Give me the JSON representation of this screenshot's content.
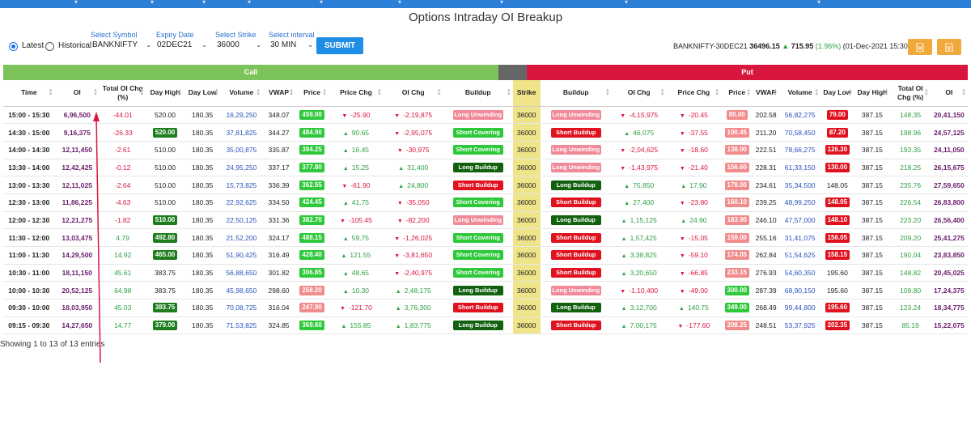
{
  "page": {
    "title": "Options Intraday OI Breakup"
  },
  "controls": {
    "latest_label": "Latest",
    "historical_label": "Historical",
    "symbol_label": "Select Symbol",
    "symbol_value": "BANKNIFTY",
    "expiry_label": "Expiry Date",
    "expiry_value": "02DEC21",
    "strike_label": "Select Strike",
    "strike_value": "36000",
    "interval_label": "Select interval",
    "interval_value": "30 MIN",
    "submit_label": "SUBMIT"
  },
  "quote": {
    "contract": "BANKNIFTY-30DEC21",
    "price": "36496.15",
    "change": "715.95",
    "change_pct": "(1.96%)",
    "timestamp": "(01-Dec-2021 15:30 )"
  },
  "colors": {
    "accent": "#1f8ee6",
    "call_band": "#7dc35b",
    "put_band": "#d9163e",
    "strike_bg": "#efe48a",
    "export_btn": "#f2a93b"
  },
  "icons": [
    "excel-export-icon",
    "pdf-export-icon",
    "sort-icon",
    "arrow-up-icon",
    "arrow-down-icon"
  ],
  "bands": {
    "call": "Call",
    "put": "Put"
  },
  "headers": [
    "Time",
    "OI",
    "Total OI Chg (%)",
    "Day High",
    "Day Low",
    "Volume",
    "VWAP",
    "Price",
    "Price Chg",
    "OI Chg",
    "Buildup",
    "Strike",
    "Buildup",
    "OI Chg",
    "Price Chg",
    "Price",
    "VWAP",
    "Volume",
    "Day Low",
    "Day High",
    "Total OI Chg (%)",
    "OI"
  ],
  "rows": [
    {
      "time": "15:00 - 15:30",
      "c_oi": "6,96,500",
      "c_toi": "-44.01",
      "c_high": "520.00",
      "c_high_tag": "",
      "c_low": "180.35",
      "c_vol": "16,29,250",
      "c_vwap": "348.07",
      "c_price": "459.00",
      "c_price_tag": "pgreen",
      "c_pchg": "-25.90",
      "c_oichg": "-2,19,875",
      "c_build": "Long Unwinding",
      "c_bcls": "lu",
      "strike": "36000",
      "p_build": "Long Unwinding",
      "p_bcls": "lu",
      "p_oichg": "-4,15,975",
      "p_pchg": "-20.45",
      "p_price": "80.00",
      "p_price_tag": "pred",
      "p_vwap": "202.58",
      "p_vol": "56,82,275",
      "p_low": "79.00",
      "p_low_tag": "red",
      "p_high": "387.15",
      "p_toi": "148.35",
      "p_oi": "20,41,150"
    },
    {
      "time": "14:30 - 15:00",
      "c_oi": "9,16,375",
      "c_toi": "-26.33",
      "c_high": "520.00",
      "c_high_tag": "green",
      "c_low": "180.35",
      "c_vol": "37,81,825",
      "c_vwap": "344.27",
      "c_price": "484.90",
      "c_price_tag": "pgreen",
      "c_pchg": "90.65",
      "c_oichg": "-2,95,075",
      "c_build": "Short Covering",
      "c_bcls": "sc",
      "strike": "36000",
      "p_build": "Short Buildup",
      "p_bcls": "sb",
      "p_oichg": "46,075",
      "p_pchg": "-37.55",
      "p_price": "100.45",
      "p_price_tag": "pred",
      "p_vwap": "211.20",
      "p_vol": "70,58,450",
      "p_low": "87.20",
      "p_low_tag": "red",
      "p_high": "387.15",
      "p_toi": "198.96",
      "p_oi": "24,57,125"
    },
    {
      "time": "14:00 - 14:30",
      "c_oi": "12,11,450",
      "c_toi": "-2.61",
      "c_high": "510.00",
      "c_high_tag": "",
      "c_low": "180.35",
      "c_vol": "35,00,875",
      "c_vwap": "335.87",
      "c_price": "394.25",
      "c_price_tag": "pgreen",
      "c_pchg": "16.45",
      "c_oichg": "-30,975",
      "c_build": "Short Covering",
      "c_bcls": "sc",
      "strike": "36000",
      "p_build": "Long Unwinding",
      "p_bcls": "lu",
      "p_oichg": "-2,04,625",
      "p_pchg": "-18.60",
      "p_price": "138.00",
      "p_price_tag": "pred",
      "p_vwap": "222.51",
      "p_vol": "78,66,275",
      "p_low": "126.30",
      "p_low_tag": "red",
      "p_high": "387.15",
      "p_toi": "193.35",
      "p_oi": "24,11,050"
    },
    {
      "time": "13:30 - 14:00",
      "c_oi": "12,42,425",
      "c_toi": "-0.12",
      "c_high": "510.00",
      "c_high_tag": "",
      "c_low": "180.35",
      "c_vol": "24,95,250",
      "c_vwap": "337.17",
      "c_price": "377.80",
      "c_price_tag": "pgreen",
      "c_pchg": "15.25",
      "c_oichg": "31,400",
      "c_build": "Long Buildup",
      "c_bcls": "lb",
      "strike": "36000",
      "p_build": "Long Unwinding",
      "p_bcls": "lu",
      "p_oichg": "-1,43,975",
      "p_pchg": "-21.40",
      "p_price": "156.60",
      "p_price_tag": "pred",
      "p_vwap": "228.31",
      "p_vol": "61,33,150",
      "p_low": "130.00",
      "p_low_tag": "red",
      "p_high": "387.15",
      "p_toi": "218.25",
      "p_oi": "26,15,675"
    },
    {
      "time": "13:00 - 13:30",
      "c_oi": "12,11,025",
      "c_toi": "-2.64",
      "c_high": "510.00",
      "c_high_tag": "",
      "c_low": "180.35",
      "c_vol": "15,73,825",
      "c_vwap": "336.39",
      "c_price": "362.55",
      "c_price_tag": "pgreen",
      "c_pchg": "-61.90",
      "c_oichg": "24,800",
      "c_build": "Short Buildup",
      "c_bcls": "sb",
      "strike": "36000",
      "p_build": "Long Buildup",
      "p_bcls": "lb",
      "p_oichg": "75,850",
      "p_pchg": "17.90",
      "p_price": "178.00",
      "p_price_tag": "pred",
      "p_vwap": "234.61",
      "p_vol": "35,34,500",
      "p_low": "148.05",
      "p_low_tag": "",
      "p_high": "387.15",
      "p_toi": "235.76",
      "p_oi": "27,59,650"
    },
    {
      "time": "12:30 - 13:00",
      "c_oi": "11,86,225",
      "c_toi": "-4.63",
      "c_high": "510.00",
      "c_high_tag": "",
      "c_low": "180.35",
      "c_vol": "22,92,625",
      "c_vwap": "334.50",
      "c_price": "424.45",
      "c_price_tag": "pgreen",
      "c_pchg": "41.75",
      "c_oichg": "-35,050",
      "c_build": "Short Covering",
      "c_bcls": "sc",
      "strike": "36000",
      "p_build": "Short Buildup",
      "p_bcls": "sb",
      "p_oichg": "27,400",
      "p_pchg": "-23.80",
      "p_price": "160.10",
      "p_price_tag": "pred",
      "p_vwap": "239.25",
      "p_vol": "48,99,250",
      "p_low": "148.05",
      "p_low_tag": "red",
      "p_high": "387.15",
      "p_toi": "226.54",
      "p_oi": "26,83,800"
    },
    {
      "time": "12:00 - 12:30",
      "c_oi": "12,21,275",
      "c_toi": "-1.82",
      "c_high": "510.00",
      "c_high_tag": "green",
      "c_low": "180.35",
      "c_vol": "22,50,125",
      "c_vwap": "331.36",
      "c_price": "382.70",
      "c_price_tag": "pgreen",
      "c_pchg": "-105.45",
      "c_oichg": "-82,200",
      "c_build": "Long Unwinding",
      "c_bcls": "lu",
      "strike": "36000",
      "p_build": "Long Buildup",
      "p_bcls": "lb",
      "p_oichg": "1,15,125",
      "p_pchg": "24.90",
      "p_price": "183.90",
      "p_price_tag": "pred",
      "p_vwap": "246.10",
      "p_vol": "47,57,000",
      "p_low": "148.10",
      "p_low_tag": "red",
      "p_high": "387.15",
      "p_toi": "223.20",
      "p_oi": "26,56,400"
    },
    {
      "time": "11:30 - 12:00",
      "c_oi": "13,03,475",
      "c_toi": "4.79",
      "c_high": "492.80",
      "c_high_tag": "green",
      "c_low": "180.35",
      "c_vol": "21,52,200",
      "c_vwap": "324.17",
      "c_price": "488.15",
      "c_price_tag": "pgreen",
      "c_pchg": "59.75",
      "c_oichg": "-1,26,025",
      "c_build": "Short Covering",
      "c_bcls": "sc",
      "strike": "36000",
      "p_build": "Short Buildup",
      "p_bcls": "sb",
      "p_oichg": "1,57,425",
      "p_pchg": "-15.05",
      "p_price": "159.00",
      "p_price_tag": "pred",
      "p_vwap": "255.16",
      "p_vol": "31,41,075",
      "p_low": "156.05",
      "p_low_tag": "red",
      "p_high": "387.15",
      "p_toi": "209.20",
      "p_oi": "25,41,275"
    },
    {
      "time": "11:00 - 11:30",
      "c_oi": "14,29,500",
      "c_toi": "14.92",
      "c_high": "465.00",
      "c_high_tag": "green",
      "c_low": "180.35",
      "c_vol": "51,90,425",
      "c_vwap": "316.49",
      "c_price": "428.40",
      "c_price_tag": "pgreen",
      "c_pchg": "121.55",
      "c_oichg": "-3,81,650",
      "c_build": "Short Covering",
      "c_bcls": "sc",
      "strike": "36000",
      "p_build": "Short Buildup",
      "p_bcls": "sb",
      "p_oichg": "3,38,825",
      "p_pchg": "-59.10",
      "p_price": "174.05",
      "p_price_tag": "pred",
      "p_vwap": "262.84",
      "p_vol": "51,54,625",
      "p_low": "158.15",
      "p_low_tag": "red",
      "p_high": "387.15",
      "p_toi": "190.04",
      "p_oi": "23,83,850"
    },
    {
      "time": "10:30 - 11:00",
      "c_oi": "18,11,150",
      "c_toi": "45.61",
      "c_high": "383.75",
      "c_high_tag": "",
      "c_low": "180.35",
      "c_vol": "56,88,650",
      "c_vwap": "301.82",
      "c_price": "306.85",
      "c_price_tag": "pgreen",
      "c_pchg": "48.65",
      "c_oichg": "-2,40,975",
      "c_build": "Short Covering",
      "c_bcls": "sc",
      "strike": "36000",
      "p_build": "Short Buildup",
      "p_bcls": "sb",
      "p_oichg": "3,20,650",
      "p_pchg": "-66.85",
      "p_price": "233.15",
      "p_price_tag": "pred",
      "p_vwap": "276.93",
      "p_vol": "54,60,350",
      "p_low": "195.60",
      "p_low_tag": "",
      "p_high": "387.15",
      "p_toi": "148.82",
      "p_oi": "20,45,025"
    },
    {
      "time": "10:00 - 10:30",
      "c_oi": "20,52,125",
      "c_toi": "64.98",
      "c_high": "383.75",
      "c_high_tag": "",
      "c_low": "180.35",
      "c_vol": "45,98,650",
      "c_vwap": "298.60",
      "c_price": "258.20",
      "c_price_tag": "pred",
      "c_pchg": "10.30",
      "c_oichg": "2,48,175",
      "c_build": "Long Buildup",
      "c_bcls": "lb",
      "strike": "36000",
      "p_build": "Long Unwinding",
      "p_bcls": "lu",
      "p_oichg": "-1,10,400",
      "p_pchg": "-49.00",
      "p_price": "300.00",
      "p_price_tag": "pgreen",
      "p_vwap": "287.39",
      "p_vol": "68,90,150",
      "p_low": "195.60",
      "p_low_tag": "",
      "p_high": "387.15",
      "p_toi": "109.80",
      "p_oi": "17,24,375"
    },
    {
      "time": "09:30 - 10:00",
      "c_oi": "18,03,950",
      "c_toi": "45.03",
      "c_high": "383.75",
      "c_high_tag": "green",
      "c_low": "180.35",
      "c_vol": "70,08,725",
      "c_vwap": "316.04",
      "c_price": "247.90",
      "c_price_tag": "pred",
      "c_pchg": "-121.70",
      "c_oichg": "3,76,300",
      "c_build": "Short Buildup",
      "c_bcls": "sb",
      "strike": "36000",
      "p_build": "Long Buildup",
      "p_bcls": "lb",
      "p_oichg": "3,12,700",
      "p_pchg": "140.75",
      "p_price": "349.00",
      "p_price_tag": "pgreen",
      "p_vwap": "268.49",
      "p_vol": "99,44,800",
      "p_low": "195.60",
      "p_low_tag": "red",
      "p_high": "387.15",
      "p_toi": "123.24",
      "p_oi": "18,34,775"
    },
    {
      "time": "09:15 - 09:30",
      "c_oi": "14,27,650",
      "c_toi": "14.77",
      "c_high": "379.00",
      "c_high_tag": "green",
      "c_low": "180.35",
      "c_vol": "71,53,825",
      "c_vwap": "324.85",
      "c_price": "369.60",
      "c_price_tag": "pgreen",
      "c_pchg": "155.85",
      "c_oichg": "1,83,775",
      "c_build": "Long Buildup",
      "c_bcls": "lb",
      "strike": "36000",
      "p_build": "Short Buildup",
      "p_bcls": "sb",
      "p_oichg": "7,00,175",
      "p_pchg": "-177.60",
      "p_price": "208.25",
      "p_price_tag": "pred",
      "p_vwap": "248.51",
      "p_vol": "53,37,925",
      "p_low": "202.35",
      "p_low_tag": "red",
      "p_high": "387.15",
      "p_toi": "85.19",
      "p_oi": "15,22,075"
    }
  ],
  "footer": {
    "entries_text": "Showing 1 to 13 of 13 entries"
  }
}
